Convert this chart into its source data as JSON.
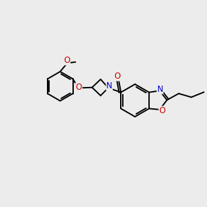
{
  "background_color": "#ececec",
  "atom_colors": {
    "C": "#000000",
    "N": "#0000cc",
    "O": "#cc0000"
  },
  "bond_color": "#000000",
  "bond_width": 1.4,
  "font_size": 8.5
}
